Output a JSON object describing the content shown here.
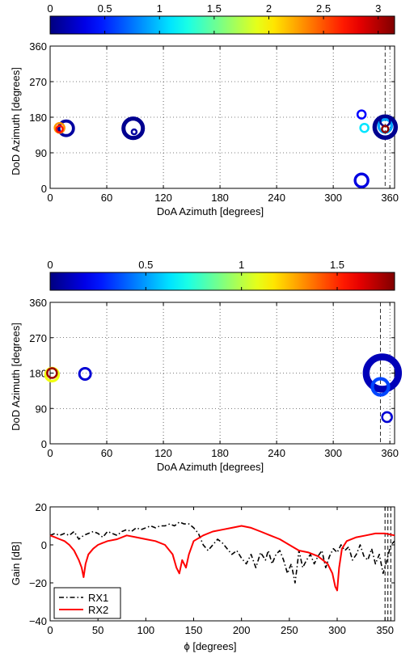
{
  "chart_data": [
    {
      "type": "scatter",
      "colorbar": {
        "ticks": [
          0,
          0.5,
          1,
          1.5,
          2,
          2.5,
          3
        ],
        "tick_labels": [
          "0",
          "0.5",
          "1",
          "1.5",
          "2",
          "2.5",
          "3"
        ],
        "range": [
          0,
          3.15
        ],
        "colormap": "jet"
      },
      "xlabel": "DoA Azimuth [degrees]",
      "ylabel": "DoD Azimuth [degrees]",
      "xlim": [
        0,
        365
      ],
      "ylim": [
        0,
        360
      ],
      "xticks": [
        0,
        60,
        120,
        180,
        240,
        300,
        360
      ],
      "yticks": [
        0,
        90,
        180,
        270,
        360
      ],
      "xtick_labels": [
        "0",
        "60",
        "120",
        "180",
        "240",
        "300",
        "360"
      ],
      "ytick_labels": [
        "0",
        "90",
        "180",
        "270",
        "360"
      ],
      "grid": true,
      "vline_x": 355,
      "points": [
        {
          "x": 10,
          "y": 150,
          "value": 2.7,
          "size": 4
        },
        {
          "x": 10,
          "y": 153,
          "value": 2.3,
          "size": 6
        },
        {
          "x": 17,
          "y": 152,
          "value": 0.1,
          "size": 9
        },
        {
          "x": 88,
          "y": 152,
          "value": 0.05,
          "size": 12
        },
        {
          "x": 89,
          "y": 143,
          "value": 0.1,
          "size": 3
        },
        {
          "x": 330,
          "y": 187,
          "value": 0.4,
          "size": 5
        },
        {
          "x": 333,
          "y": 153,
          "value": 1.1,
          "size": 5
        },
        {
          "x": 330,
          "y": 20,
          "value": 0.3,
          "size": 8
        },
        {
          "x": 355,
          "y": 170,
          "value": 0.05,
          "size": 6
        },
        {
          "x": 355,
          "y": 155,
          "value": 0.05,
          "size": 13
        },
        {
          "x": 355,
          "y": 158,
          "value": 0.9,
          "size": 8
        },
        {
          "x": 355,
          "y": 150,
          "value": 3.1,
          "size": 4
        }
      ]
    },
    {
      "type": "scatter",
      "colorbar": {
        "ticks": [
          0,
          0.5,
          1,
          1.5
        ],
        "tick_labels": [
          "0",
          "0.5",
          "1",
          "1.5"
        ],
        "range": [
          0,
          1.8
        ],
        "colormap": "jet"
      },
      "xlabel": "DoA Azimuth [degrees]",
      "ylabel": "DoD Azimuth [degrees]",
      "xlim": [
        0,
        365
      ],
      "ylim": [
        0,
        360
      ],
      "xticks": [
        0,
        60,
        120,
        180,
        240,
        300,
        360
      ],
      "yticks": [
        0,
        90,
        180,
        270,
        360
      ],
      "xtick_labels": [
        "0",
        "60",
        "120",
        "180",
        "240",
        "300",
        "360"
      ],
      "ytick_labels": [
        "0",
        "90",
        "180",
        "270",
        "360"
      ],
      "grid": true,
      "vline_x": 350,
      "points": [
        {
          "x": 2,
          "y": 176,
          "value": 1.1,
          "size": 8
        },
        {
          "x": 2,
          "y": 180,
          "value": 1.75,
          "size": 6
        },
        {
          "x": 37,
          "y": 178,
          "value": 0.15,
          "size": 7
        },
        {
          "x": 350,
          "y": 145,
          "value": 0.35,
          "size": 10
        },
        {
          "x": 352,
          "y": 180,
          "value": 0.1,
          "size": 20
        },
        {
          "x": 357,
          "y": 68,
          "value": 0.15,
          "size": 6
        }
      ]
    },
    {
      "type": "line",
      "xlabel": "ϕ [degrees]",
      "ylabel": "Gain [dB]",
      "xlim": [
        0,
        360
      ],
      "ylim": [
        -40,
        20
      ],
      "xticks": [
        0,
        50,
        100,
        150,
        200,
        250,
        300,
        350
      ],
      "yticks": [
        -40,
        -20,
        0,
        20
      ],
      "xtick_labels": [
        "0",
        "50",
        "100",
        "150",
        "200",
        "250",
        "300",
        "350"
      ],
      "ytick_labels": [
        "−40",
        "−20",
        "0",
        "20"
      ],
      "grid": false,
      "legend_position": "bottom-left",
      "vlines_x": [
        350,
        353,
        356
      ],
      "series": [
        {
          "name": "RX1",
          "color": "#000000",
          "style": "dashdot",
          "x": [
            0,
            5,
            10,
            15,
            20,
            25,
            30,
            35,
            40,
            45,
            50,
            55,
            60,
            65,
            70,
            75,
            80,
            85,
            90,
            95,
            100,
            105,
            110,
            115,
            120,
            125,
            130,
            135,
            140,
            145,
            150,
            155,
            160,
            165,
            170,
            175,
            180,
            185,
            190,
            195,
            200,
            205,
            210,
            215,
            220,
            225,
            228,
            232,
            236,
            240,
            244,
            248,
            252,
            256,
            258,
            260,
            264,
            268,
            272,
            276,
            280,
            284,
            288,
            292,
            296,
            300,
            304,
            308,
            312,
            316,
            320,
            324,
            328,
            332,
            336,
            340,
            344,
            348,
            352,
            356,
            360
          ],
          "y": [
            5,
            6,
            5,
            6,
            5,
            7,
            3,
            5,
            6,
            7,
            6,
            4,
            7,
            6,
            5,
            7,
            8,
            7,
            9,
            8,
            9,
            10,
            9,
            10,
            10,
            11,
            10,
            12,
            11,
            11,
            9,
            6,
            0,
            -3,
            0,
            3,
            1,
            -2,
            -5,
            -3,
            -7,
            -10,
            -5,
            -12,
            -4,
            -8,
            -3,
            -10,
            -5,
            -3,
            -8,
            -15,
            -10,
            -20,
            -12,
            -3,
            -12,
            -8,
            -5,
            -10,
            -6,
            -3,
            -12,
            -6,
            -2,
            -4,
            0,
            -3,
            -1,
            -8,
            -5,
            0,
            -6,
            -8,
            -2,
            -10,
            -5,
            -15,
            -8,
            0,
            2
          ]
        },
        {
          "name": "RX2",
          "color": "#ff0000",
          "style": "solid",
          "x": [
            0,
            5,
            10,
            15,
            20,
            25,
            30,
            33,
            35,
            37,
            40,
            45,
            50,
            55,
            60,
            70,
            80,
            90,
            100,
            110,
            120,
            128,
            132,
            135,
            138,
            142,
            145,
            150,
            160,
            170,
            180,
            190,
            200,
            210,
            220,
            230,
            240,
            250,
            260,
            270,
            280,
            285,
            290,
            295,
            298,
            300,
            302,
            305,
            310,
            320,
            330,
            340,
            350,
            360
          ],
          "y": [
            5,
            4,
            3,
            2,
            0,
            -3,
            -8,
            -12,
            -17,
            -10,
            -5,
            -2,
            0,
            1,
            2,
            3,
            5,
            4,
            3,
            2,
            0,
            -5,
            -12,
            -15,
            -8,
            -12,
            -5,
            2,
            5,
            7,
            8,
            9,
            10,
            9,
            7,
            5,
            3,
            0,
            -3,
            -4,
            -6,
            -8,
            -10,
            -15,
            -22,
            -24,
            -12,
            -2,
            2,
            4,
            5,
            6,
            6,
            5
          ]
        }
      ]
    }
  ]
}
